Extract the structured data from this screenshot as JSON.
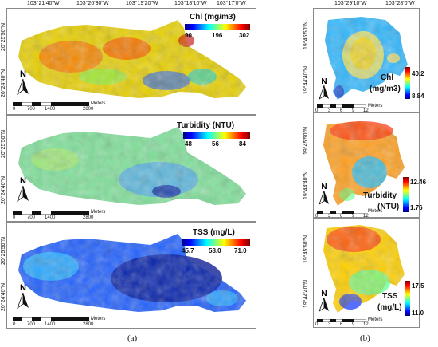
{
  "left": {
    "top_coords": [
      "103°21'40\"W",
      "103°20'30\"W",
      "103°19'20\"W",
      "103°18'10\"W",
      "103°17'0\"W"
    ],
    "side_coords": [
      "20°25'50\"N",
      "20°24'40\"N"
    ],
    "north": "N",
    "scale_ticks": [
      "0",
      "700",
      "1400",
      "2800"
    ],
    "scale_unit": "Meters",
    "panels": [
      {
        "title": "Chl (mg/m3)",
        "ticks": [
          "90",
          "196",
          "302"
        ]
      },
      {
        "title": "Turbidity (NTU)",
        "ticks": [
          "48",
          "56",
          "84"
        ]
      },
      {
        "title": "TSS (mg/L)",
        "ticks": [
          "45.7",
          "58.0",
          "71.0"
        ]
      }
    ],
    "caption": "(a)"
  },
  "right": {
    "top_coords": [
      "103°29'10\"W",
      "103°28'0\"W"
    ],
    "side_coords": [
      "19°45'50\"N",
      "19°44'40\"N"
    ],
    "north": "N",
    "scale_ticks": [
      "0",
      "3",
      "6",
      "9",
      "12"
    ],
    "scale_unit": "Meters",
    "panels": [
      {
        "title1": "Chl",
        "title2": "(mg/m3)",
        "max": "40.2",
        "min": "8.84"
      },
      {
        "title1": "Turbidity",
        "title2": "(NTU)",
        "max": "12.46",
        "min": "1.76"
      },
      {
        "title1": "TSS",
        "title2": "(mg/L)",
        "max": "17.5",
        "min": "11.0"
      }
    ],
    "caption": "(b)"
  },
  "colors": {
    "jet_blue": "#00007f",
    "jet_cyan": "#00ffff",
    "jet_yellow": "#ffff00",
    "jet_red": "#7f0000"
  }
}
